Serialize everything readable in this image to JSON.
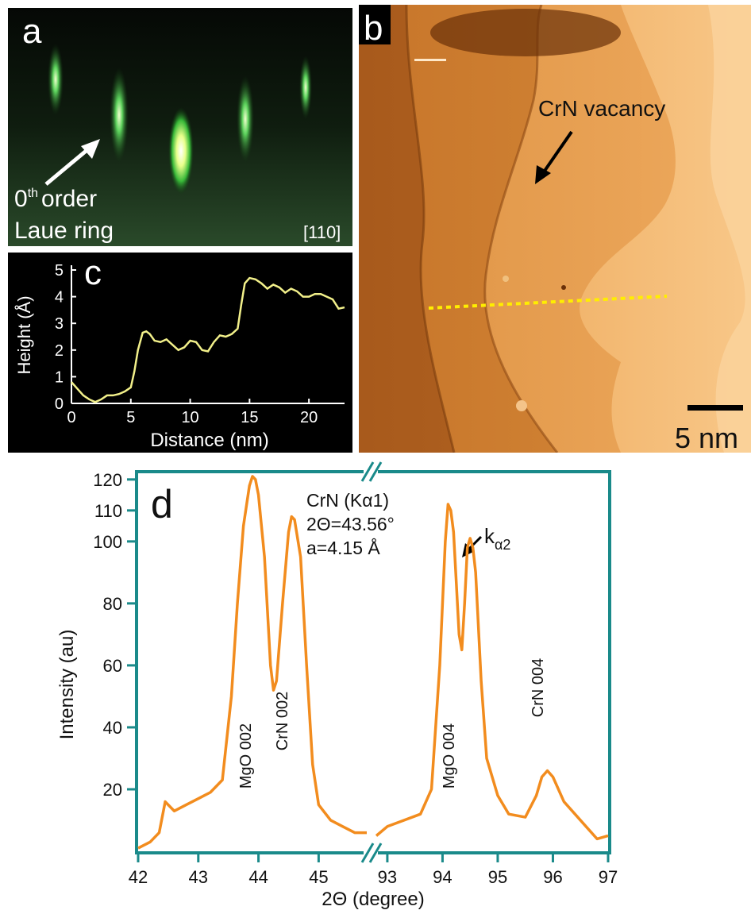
{
  "panel_a": {
    "label": "a",
    "annotation_line1": "0",
    "annotation_sup": "th",
    "annotation_line1_rest": "order",
    "annotation_line2": "Laue ring",
    "direction": "[110]"
  },
  "panel_b": {
    "label": "b",
    "annotation": "CrN vacancy",
    "scale_bar_label": "5 nm"
  },
  "panel_c": {
    "label": "c",
    "chart_data": {
      "type": "line",
      "xlabel": "Distance (nm)",
      "ylabel": "Height (Å)",
      "xlim": [
        0,
        23
      ],
      "ylim": [
        0,
        5
      ],
      "xticks": [
        0,
        5,
        10,
        15,
        20
      ],
      "yticks": [
        0,
        1,
        2,
        3,
        4,
        5
      ],
      "color": "#f2f08a",
      "series": [
        {
          "x": [
            0,
            0.5,
            1,
            1.5,
            2,
            2.5,
            3,
            3.5,
            4,
            4.5,
            5,
            5.3,
            5.6,
            6,
            6.3,
            6.6,
            7,
            7.5,
            8,
            8.5,
            9,
            9.5,
            10,
            10.5,
            11,
            11.5,
            12,
            12.5,
            13,
            13.5,
            14,
            14.3,
            14.6,
            15,
            15.5,
            16,
            16.5,
            17,
            17.5,
            18,
            18.5,
            19,
            19.5,
            20,
            20.5,
            21,
            21.5,
            22,
            22.5,
            23
          ],
          "y": [
            0.8,
            0.55,
            0.3,
            0.15,
            0.05,
            0.15,
            0.3,
            0.3,
            0.35,
            0.45,
            0.6,
            1.2,
            2.0,
            2.65,
            2.7,
            2.6,
            2.35,
            2.3,
            2.4,
            2.2,
            2.0,
            2.1,
            2.35,
            2.3,
            2.0,
            1.95,
            2.3,
            2.55,
            2.5,
            2.6,
            2.8,
            3.7,
            4.5,
            4.7,
            4.65,
            4.5,
            4.3,
            4.45,
            4.35,
            4.15,
            4.3,
            4.2,
            4.0,
            4.0,
            4.1,
            4.1,
            4.0,
            3.9,
            3.55,
            3.6
          ]
        }
      ]
    }
  },
  "panel_d": {
    "label": "d",
    "annotation_lines": [
      "CrN (Kα1)",
      "2Θ=43.56°",
      "a=4.15 Å"
    ],
    "kalpha2_label_main": "k",
    "kalpha2_label_sub": "α2",
    "peak_labels": [
      "MgO 002",
      "CrN 002",
      "MgO 004",
      "CrN 004"
    ],
    "chart_data": {
      "type": "line",
      "xlabel": "2Θ (degree)",
      "ylabel": "Intensity (au)",
      "broken_axis": true,
      "ylim": [
        0,
        122
      ],
      "yticks": [
        20,
        40,
        60,
        80,
        100,
        110,
        120
      ],
      "color": "#f28c1e",
      "segments": [
        {
          "xlim": [
            42,
            45.8
          ],
          "xticks": [
            42,
            43,
            44,
            45
          ],
          "x": [
            42.0,
            42.2,
            42.35,
            42.45,
            42.5,
            42.6,
            42.8,
            43.0,
            43.2,
            43.4,
            43.55,
            43.65,
            43.75,
            43.85,
            43.9,
            43.95,
            44.0,
            44.1,
            44.2,
            44.25,
            44.3,
            44.4,
            44.5,
            44.55,
            44.6,
            44.7,
            44.8,
            44.9,
            45.0,
            45.2,
            45.4,
            45.6,
            45.8
          ],
          "y": [
            1,
            3,
            6,
            16,
            15,
            13,
            15,
            17,
            19,
            23,
            50,
            80,
            105,
            118,
            121,
            120,
            115,
            95,
            60,
            52,
            55,
            80,
            103,
            108,
            107,
            95,
            60,
            28,
            15,
            10,
            8,
            6,
            6
          ]
        },
        {
          "xlim": [
            92.8,
            97
          ],
          "xticks": [
            93,
            94,
            95,
            96,
            97
          ],
          "x": [
            92.8,
            93.0,
            93.3,
            93.6,
            93.8,
            93.95,
            94.05,
            94.1,
            94.15,
            94.2,
            94.3,
            94.35,
            94.4,
            94.45,
            94.5,
            94.55,
            94.6,
            94.7,
            94.8,
            95.0,
            95.2,
            95.5,
            95.7,
            95.8,
            95.9,
            96.0,
            96.2,
            96.4,
            96.6,
            96.8,
            97.0
          ],
          "y": [
            5,
            8,
            10,
            12,
            20,
            60,
            100,
            112,
            110,
            103,
            70,
            65,
            80,
            98,
            101,
            98,
            90,
            55,
            30,
            18,
            12,
            11,
            18,
            24,
            26,
            24,
            16,
            12,
            8,
            4,
            5
          ]
        }
      ]
    }
  }
}
